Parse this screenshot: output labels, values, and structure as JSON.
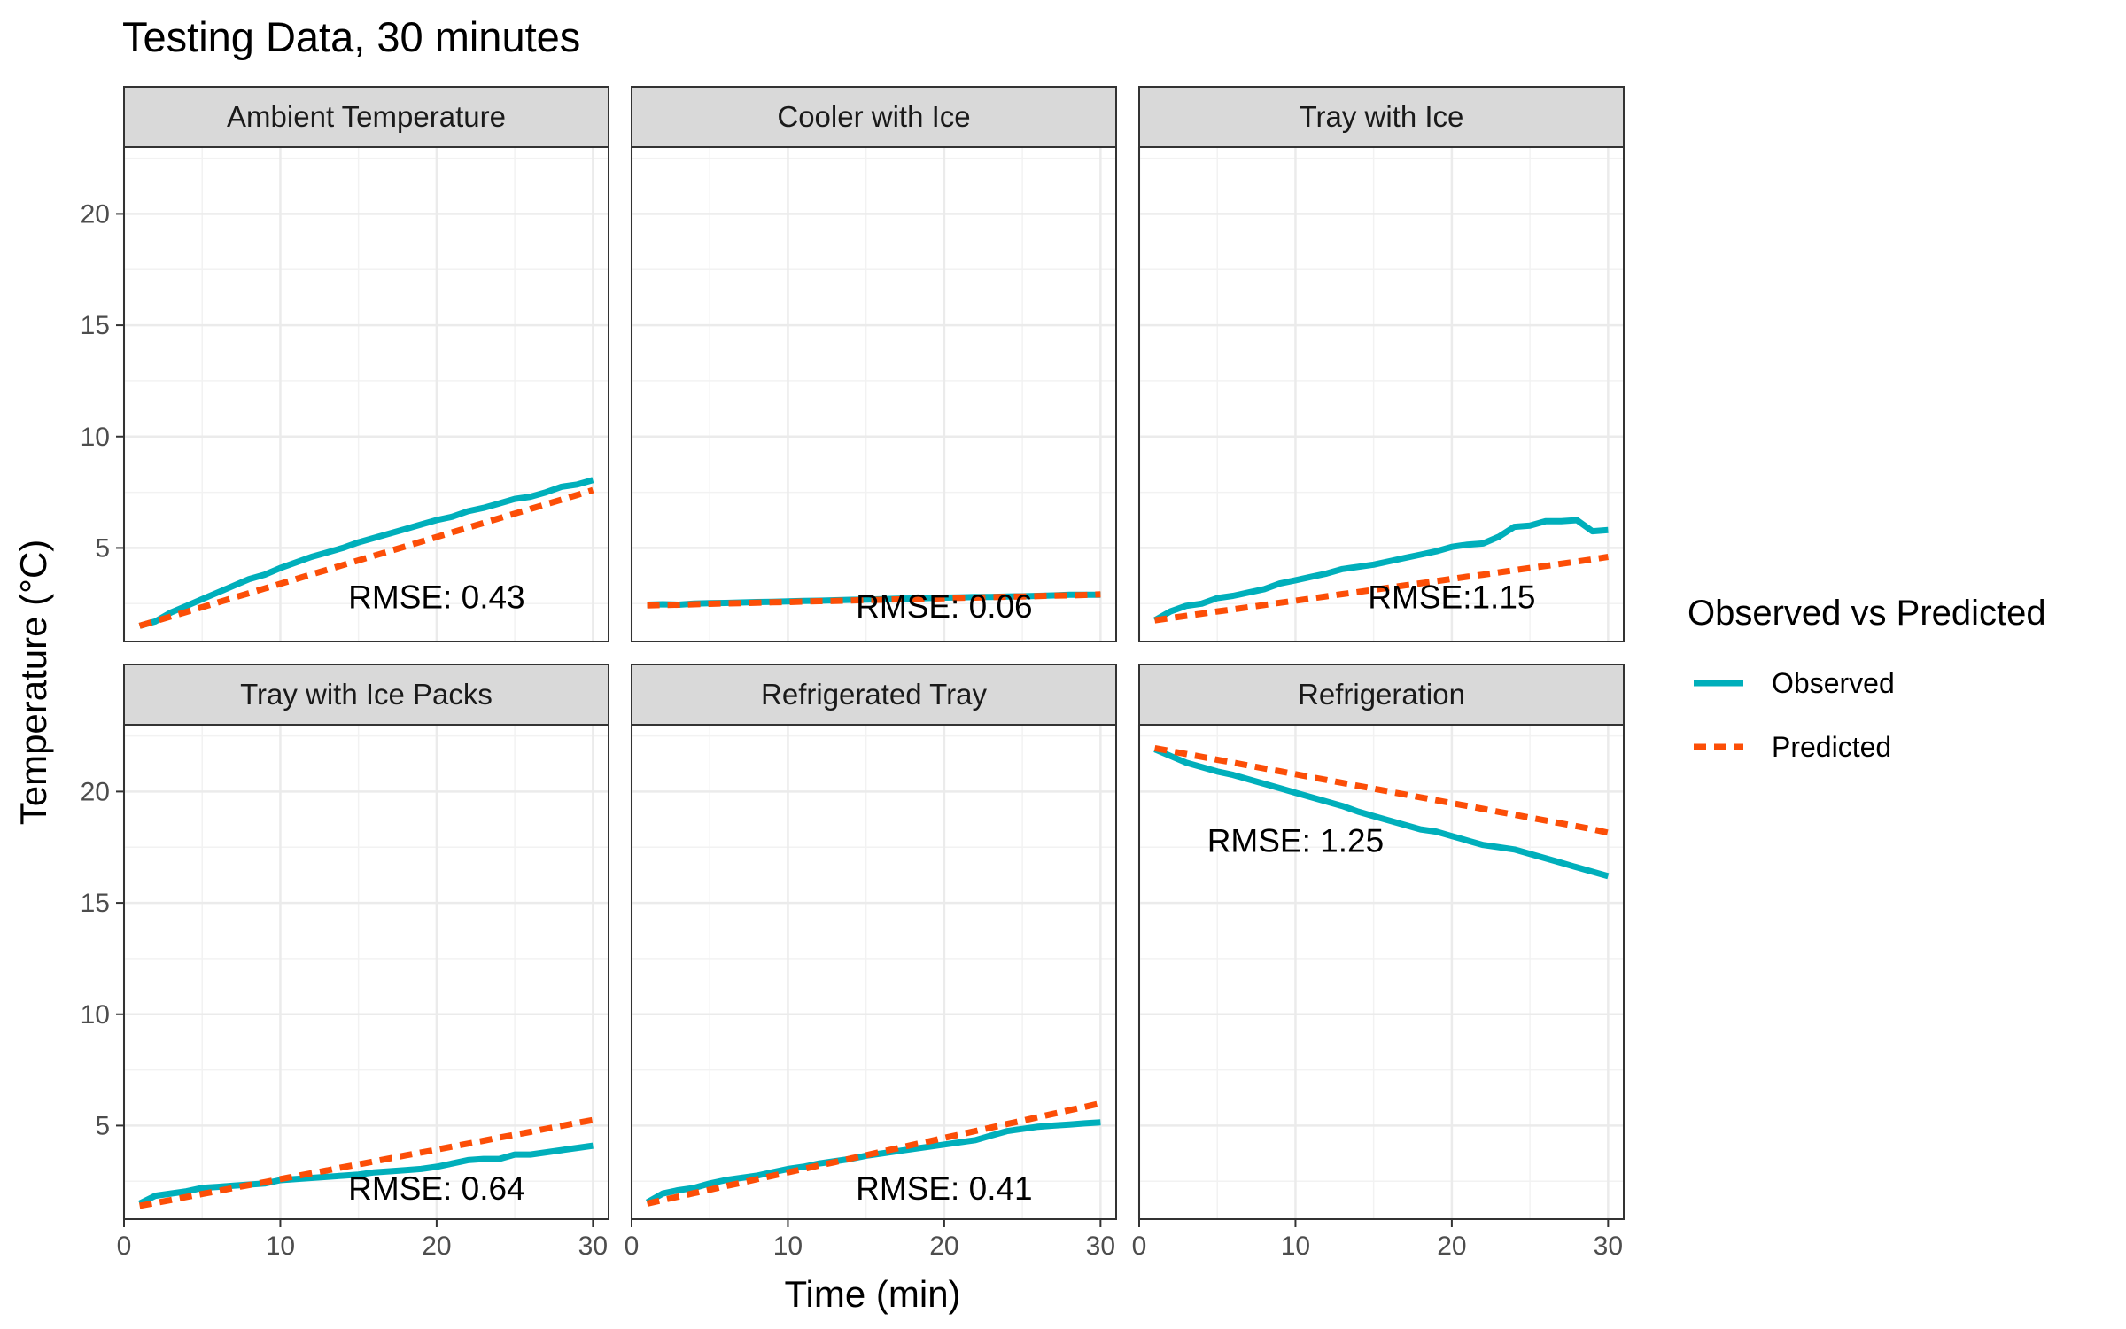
{
  "chart_data": {
    "type": "line",
    "title": "Testing Data, 30 minutes",
    "xlabel": "Time (min)",
    "ylabel": "Temperature (°C)",
    "xlim": [
      0,
      31
    ],
    "ylim": [
      0.8,
      23
    ],
    "x_ticks": [
      0,
      10,
      20,
      30
    ],
    "y_ticks": [
      5,
      10,
      15,
      20
    ],
    "grid": true,
    "legend": {
      "title": "Observed vs Predicted",
      "position": "right",
      "entries": [
        {
          "name": "Observed",
          "color": "#00AFBB",
          "style": "solid"
        },
        {
          "name": "Predicted",
          "color": "#FC4E07",
          "style": "dashed"
        }
      ]
    },
    "x": [
      1,
      2,
      3,
      4,
      5,
      6,
      7,
      8,
      9,
      10,
      11,
      12,
      13,
      14,
      15,
      16,
      17,
      18,
      19,
      20,
      21,
      22,
      23,
      24,
      25,
      26,
      27,
      28,
      29,
      30
    ],
    "panels": [
      {
        "name": "Ambient Temperature",
        "annotation": "RMSE: 0.43",
        "annotation_pos": [
          20,
          2.8
        ],
        "series": [
          {
            "name": "Observed",
            "values": [
              1.5,
              1.7,
              2.1,
              2.4,
              2.7,
              3.0,
              3.3,
              3.6,
              3.8,
              4.1,
              4.35,
              4.6,
              4.8,
              5.0,
              5.25,
              5.45,
              5.65,
              5.85,
              6.05,
              6.25,
              6.4,
              6.65,
              6.8,
              7.0,
              7.2,
              7.3,
              7.5,
              7.75,
              7.85,
              8.05
            ]
          },
          {
            "name": "Predicted",
            "values": [
              1.5,
              1.71,
              1.92,
              2.13,
              2.34,
              2.55,
              2.76,
              2.97,
              3.18,
              3.39,
              3.6,
              3.81,
              4.02,
              4.23,
              4.44,
              4.65,
              4.86,
              5.07,
              5.28,
              5.49,
              5.7,
              5.91,
              6.12,
              6.33,
              6.54,
              6.75,
              6.96,
              7.17,
              7.38,
              7.6
            ]
          }
        ]
      },
      {
        "name": "Cooler with Ice",
        "annotation": "RMSE: 0.06",
        "annotation_pos": [
          20,
          2.4
        ],
        "series": [
          {
            "name": "Observed",
            "values": [
              2.45,
              2.47,
              2.45,
              2.5,
              2.52,
              2.53,
              2.55,
              2.57,
              2.58,
              2.6,
              2.62,
              2.63,
              2.65,
              2.67,
              2.68,
              2.7,
              2.72,
              2.73,
              2.75,
              2.77,
              2.78,
              2.8,
              2.8,
              2.82,
              2.83,
              2.85,
              2.87,
              2.9,
              2.9,
              2.9
            ]
          },
          {
            "name": "Predicted",
            "values": [
              2.42,
              2.44,
              2.45,
              2.47,
              2.49,
              2.51,
              2.52,
              2.54,
              2.56,
              2.57,
              2.59,
              2.61,
              2.62,
              2.64,
              2.66,
              2.67,
              2.69,
              2.71,
              2.72,
              2.74,
              2.76,
              2.77,
              2.79,
              2.81,
              2.82,
              2.84,
              2.86,
              2.87,
              2.89,
              2.92
            ]
          }
        ]
      },
      {
        "name": "Tray with Ice",
        "annotation": "RMSE:1.15",
        "annotation_pos": [
          20,
          2.8
        ],
        "series": [
          {
            "name": "Observed",
            "values": [
              1.75,
              2.15,
              2.4,
              2.5,
              2.75,
              2.85,
              3.0,
              3.15,
              3.4,
              3.55,
              3.7,
              3.85,
              4.05,
              4.15,
              4.25,
              4.4,
              4.55,
              4.7,
              4.85,
              5.05,
              5.15,
              5.2,
              5.5,
              5.95,
              6.0,
              6.2,
              6.2,
              6.25,
              5.75,
              5.8
            ]
          },
          {
            "name": "Predicted",
            "values": [
              1.75,
              1.85,
              1.95,
              2.05,
              2.15,
              2.24,
              2.34,
              2.44,
              2.54,
              2.63,
              2.73,
              2.83,
              2.93,
              3.02,
              3.12,
              3.22,
              3.32,
              3.41,
              3.51,
              3.61,
              3.71,
              3.8,
              3.9,
              4.0,
              4.1,
              4.19,
              4.29,
              4.39,
              4.49,
              4.6
            ]
          }
        ]
      },
      {
        "name": "Tray with Ice Packs",
        "annotation": "RMSE: 0.64",
        "annotation_pos": [
          20,
          2.2
        ],
        "series": [
          {
            "name": "Observed",
            "values": [
              1.5,
              1.85,
              1.95,
              2.05,
              2.2,
              2.25,
              2.3,
              2.35,
              2.4,
              2.55,
              2.6,
              2.65,
              2.7,
              2.75,
              2.8,
              2.9,
              2.95,
              3.0,
              3.05,
              3.15,
              3.3,
              3.45,
              3.5,
              3.5,
              3.7,
              3.7,
              3.8,
              3.9,
              4.0,
              4.1
            ]
          },
          {
            "name": "Predicted",
            "values": [
              1.4,
              1.53,
              1.66,
              1.8,
              1.93,
              2.06,
              2.2,
              2.33,
              2.46,
              2.6,
              2.73,
              2.86,
              2.99,
              3.13,
              3.26,
              3.39,
              3.53,
              3.66,
              3.79,
              3.92,
              4.06,
              4.19,
              4.32,
              4.46,
              4.59,
              4.72,
              4.86,
              4.99,
              5.12,
              5.25
            ]
          }
        ]
      },
      {
        "name": "Refrigerated Tray",
        "annotation": "RMSE: 0.41",
        "annotation_pos": [
          20,
          2.2
        ],
        "series": [
          {
            "name": "Observed",
            "values": [
              1.55,
              1.95,
              2.1,
              2.2,
              2.4,
              2.55,
              2.65,
              2.75,
              2.9,
              3.05,
              3.15,
              3.3,
              3.4,
              3.5,
              3.65,
              3.75,
              3.85,
              3.95,
              4.05,
              4.15,
              4.25,
              4.35,
              4.55,
              4.75,
              4.85,
              4.95,
              5.0,
              5.05,
              5.1,
              5.15
            ]
          },
          {
            "name": "Predicted",
            "values": [
              1.5,
              1.66,
              1.81,
              1.97,
              2.12,
              2.28,
              2.43,
              2.59,
              2.74,
              2.9,
              3.05,
              3.21,
              3.36,
              3.52,
              3.67,
              3.83,
              3.98,
              4.14,
              4.29,
              4.45,
              4.6,
              4.76,
              4.91,
              5.07,
              5.22,
              5.38,
              5.53,
              5.69,
              5.84,
              6.0
            ]
          }
        ]
      },
      {
        "name": "Refrigeration",
        "annotation": "RMSE: 1.25",
        "annotation_pos": [
          10,
          17.8
        ],
        "series": [
          {
            "name": "Observed",
            "values": [
              21.9,
              21.6,
              21.3,
              21.1,
              20.9,
              20.75,
              20.55,
              20.35,
              20.15,
              19.95,
              19.75,
              19.55,
              19.35,
              19.1,
              18.9,
              18.7,
              18.5,
              18.3,
              18.2,
              18.0,
              17.8,
              17.6,
              17.5,
              17.4,
              17.2,
              17.0,
              16.8,
              16.6,
              16.4,
              16.2
            ]
          },
          {
            "name": "Predicted",
            "values": [
              21.95,
              21.82,
              21.69,
              21.56,
              21.43,
              21.3,
              21.17,
              21.04,
              20.91,
              20.78,
              20.65,
              20.52,
              20.39,
              20.26,
              20.13,
              20.0,
              19.87,
              19.74,
              19.61,
              19.48,
              19.35,
              19.22,
              19.09,
              18.96,
              18.83,
              18.7,
              18.57,
              18.44,
              18.31,
              18.15
            ]
          }
        ]
      }
    ]
  }
}
